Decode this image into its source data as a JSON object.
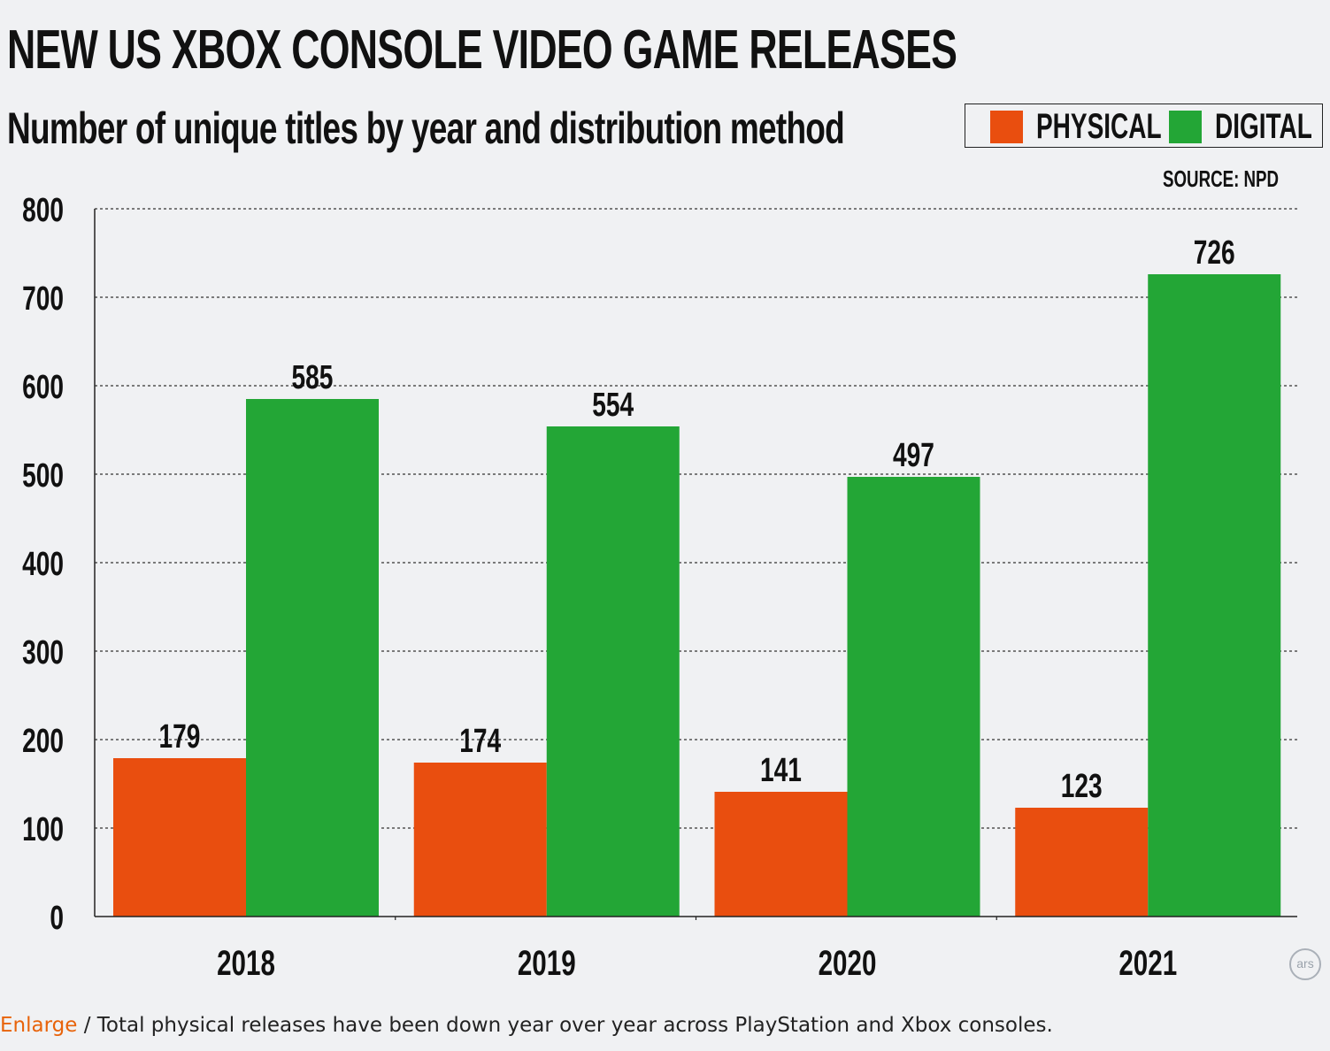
{
  "title": "NEW US XBOX CONSOLE VIDEO GAME RELEASES",
  "subtitle": "Number of unique titles by year and distribution method",
  "legend": {
    "physical_label": "PHYSICAL",
    "digital_label": "DIGITAL"
  },
  "source": "SOURCE: NPD",
  "watermark": "ars",
  "caption": {
    "link_text": "Enlarge",
    "text": " / Total physical releases have been down year over year across PlayStation and Xbox consoles."
  },
  "colors": {
    "physical": "#e94e0f",
    "digital": "#23a636",
    "background": "#f0f1f3",
    "link": "#e8630a"
  },
  "chart_data": {
    "type": "bar",
    "categories": [
      "2018",
      "2019",
      "2020",
      "2021"
    ],
    "series": [
      {
        "name": "PHYSICAL",
        "values": [
          179,
          174,
          141,
          123
        ]
      },
      {
        "name": "DIGITAL",
        "values": [
          585,
          554,
          497,
          726
        ]
      }
    ],
    "ylim": [
      0,
      800
    ],
    "yticks": [
      0,
      100,
      200,
      300,
      400,
      500,
      600,
      700,
      800
    ],
    "grid": "dotted horizontal",
    "title": "NEW US XBOX CONSOLE VIDEO GAME RELEASES",
    "xlabel": "",
    "ylabel": ""
  }
}
